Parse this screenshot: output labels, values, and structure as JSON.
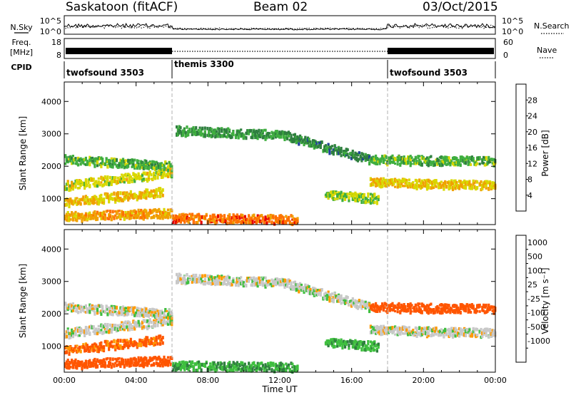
{
  "header": {
    "title": "Saskatoon (fitACF)",
    "beam": "Beam 02",
    "date": "03/Oct/2015"
  },
  "noise_panel": {
    "left_label": "N.Sky",
    "right_label": "N.Search",
    "ticks": [
      "10^5",
      "10^0"
    ]
  },
  "freq_panel": {
    "left_label_1": "Freq.",
    "left_label_2": "[MHz]",
    "left_ticks": [
      "18",
      "8"
    ],
    "right_ticks": [
      "60",
      "0"
    ],
    "right_label": "Nave"
  },
  "cpid_panel": {
    "label": "CPID",
    "modes": [
      {
        "name": "twofsound 3503",
        "start": 0,
        "end": 6
      },
      {
        "name": "themis 3300",
        "start": 6,
        "end": 18
      },
      {
        "name": "twofsound 3503",
        "start": 18,
        "end": 24
      }
    ]
  },
  "colors": {
    "power": [
      "#0000ee",
      "#1f3f9a",
      "#2f7f3f",
      "#3fae3f",
      "#d8d800",
      "#f0a000",
      "#ff7000",
      "#e60000"
    ],
    "velocity": [
      "#e60000",
      "#ff5500",
      "#ff9900",
      "#c8c8c8",
      "#c8c8c8",
      "#3fbf3f",
      "#2f7f3f",
      "#1f3f9a",
      "#0000ee"
    ],
    "mode_boundary": "#b0b0b0"
  },
  "chart_data": [
    {
      "type": "heatmap",
      "title": "Power",
      "xlabel": "Time UT",
      "ylabel": "Slant Range [km]",
      "colorbar_label": "Power [dB]",
      "xlim": [
        0,
        24
      ],
      "ylim": [
        200,
        4600
      ],
      "x_ticks": [
        "00:00",
        "04:00",
        "08:00",
        "12:00",
        "16:00",
        "20:00",
        "00:00"
      ],
      "y_ticks": [
        1000,
        2000,
        3000,
        4000
      ],
      "colorbar_ticks": [
        4,
        8,
        12,
        16,
        20,
        24,
        28
      ],
      "colorbar_range": [
        0,
        32
      ],
      "echo_bands": [
        {
          "t_start": 0.0,
          "t_end": 6.0,
          "range_start": 2200,
          "range_end": 2000,
          "value": 14
        },
        {
          "t_start": 0.0,
          "t_end": 6.0,
          "range_start": 1400,
          "range_end": 1800,
          "value": 18
        },
        {
          "t_start": 0.0,
          "t_end": 5.5,
          "range_start": 900,
          "range_end": 1200,
          "value": 20
        },
        {
          "t_start": 0.0,
          "t_end": 6.0,
          "range_start": 450,
          "range_end": 550,
          "value": 22
        },
        {
          "t_start": 6.2,
          "t_end": 12.5,
          "range_start": 3100,
          "range_end": 2950,
          "value": 12
        },
        {
          "t_start": 12.5,
          "t_end": 17.0,
          "range_start": 2900,
          "range_end": 2200,
          "value": 10
        },
        {
          "t_start": 17.0,
          "t_end": 24.0,
          "range_start": 2200,
          "range_end": 2150,
          "value": 14
        },
        {
          "t_start": 17.0,
          "t_end": 24.0,
          "range_start": 1500,
          "range_end": 1400,
          "value": 20
        },
        {
          "t_start": 14.5,
          "t_end": 17.5,
          "range_start": 1100,
          "range_end": 1000,
          "value": 16
        },
        {
          "t_start": 6.0,
          "t_end": 13.0,
          "range_start": 400,
          "range_end": 350,
          "value": 26
        }
      ]
    },
    {
      "type": "heatmap",
      "title": "Velocity",
      "xlabel": "Time UT",
      "ylabel": "Slant Range [km]",
      "colorbar_label": "Velocity [m s⁻¹]",
      "xlim": [
        0,
        24
      ],
      "ylim": [
        200,
        4600
      ],
      "x_ticks": [
        "00:00",
        "04:00",
        "08:00",
        "12:00",
        "16:00",
        "20:00",
        "00:00"
      ],
      "y_ticks": [
        1000,
        2000,
        3000,
        4000
      ],
      "colorbar_ticks": [
        "1000",
        "500",
        "100",
        "25",
        "-25",
        "-100",
        "-500",
        "-1000"
      ],
      "echo_bands": [
        {
          "t_start": 0.0,
          "t_end": 6.0,
          "range_start": 2200,
          "range_end": 2000,
          "value": 0
        },
        {
          "t_start": 0.0,
          "t_end": 6.0,
          "range_start": 1400,
          "range_end": 1800,
          "value": 0
        },
        {
          "t_start": 0.0,
          "t_end": 5.5,
          "range_start": 900,
          "range_end": 1200,
          "value": -120
        },
        {
          "t_start": 0.0,
          "t_end": 6.0,
          "range_start": 450,
          "range_end": 550,
          "value": -150
        },
        {
          "t_start": 6.2,
          "t_end": 12.5,
          "range_start": 3100,
          "range_end": 2950,
          "value": 0
        },
        {
          "t_start": 12.5,
          "t_end": 17.0,
          "range_start": 2900,
          "range_end": 2200,
          "value": 0
        },
        {
          "t_start": 17.0,
          "t_end": 24.0,
          "range_start": 2200,
          "range_end": 2150,
          "value": -300
        },
        {
          "t_start": 17.0,
          "t_end": 24.0,
          "range_start": 1500,
          "range_end": 1400,
          "value": 0
        },
        {
          "t_start": 14.5,
          "t_end": 17.5,
          "range_start": 1100,
          "range_end": 1000,
          "value": 80
        },
        {
          "t_start": 6.0,
          "t_end": 13.0,
          "range_start": 400,
          "range_end": 350,
          "value": 90
        }
      ]
    }
  ]
}
